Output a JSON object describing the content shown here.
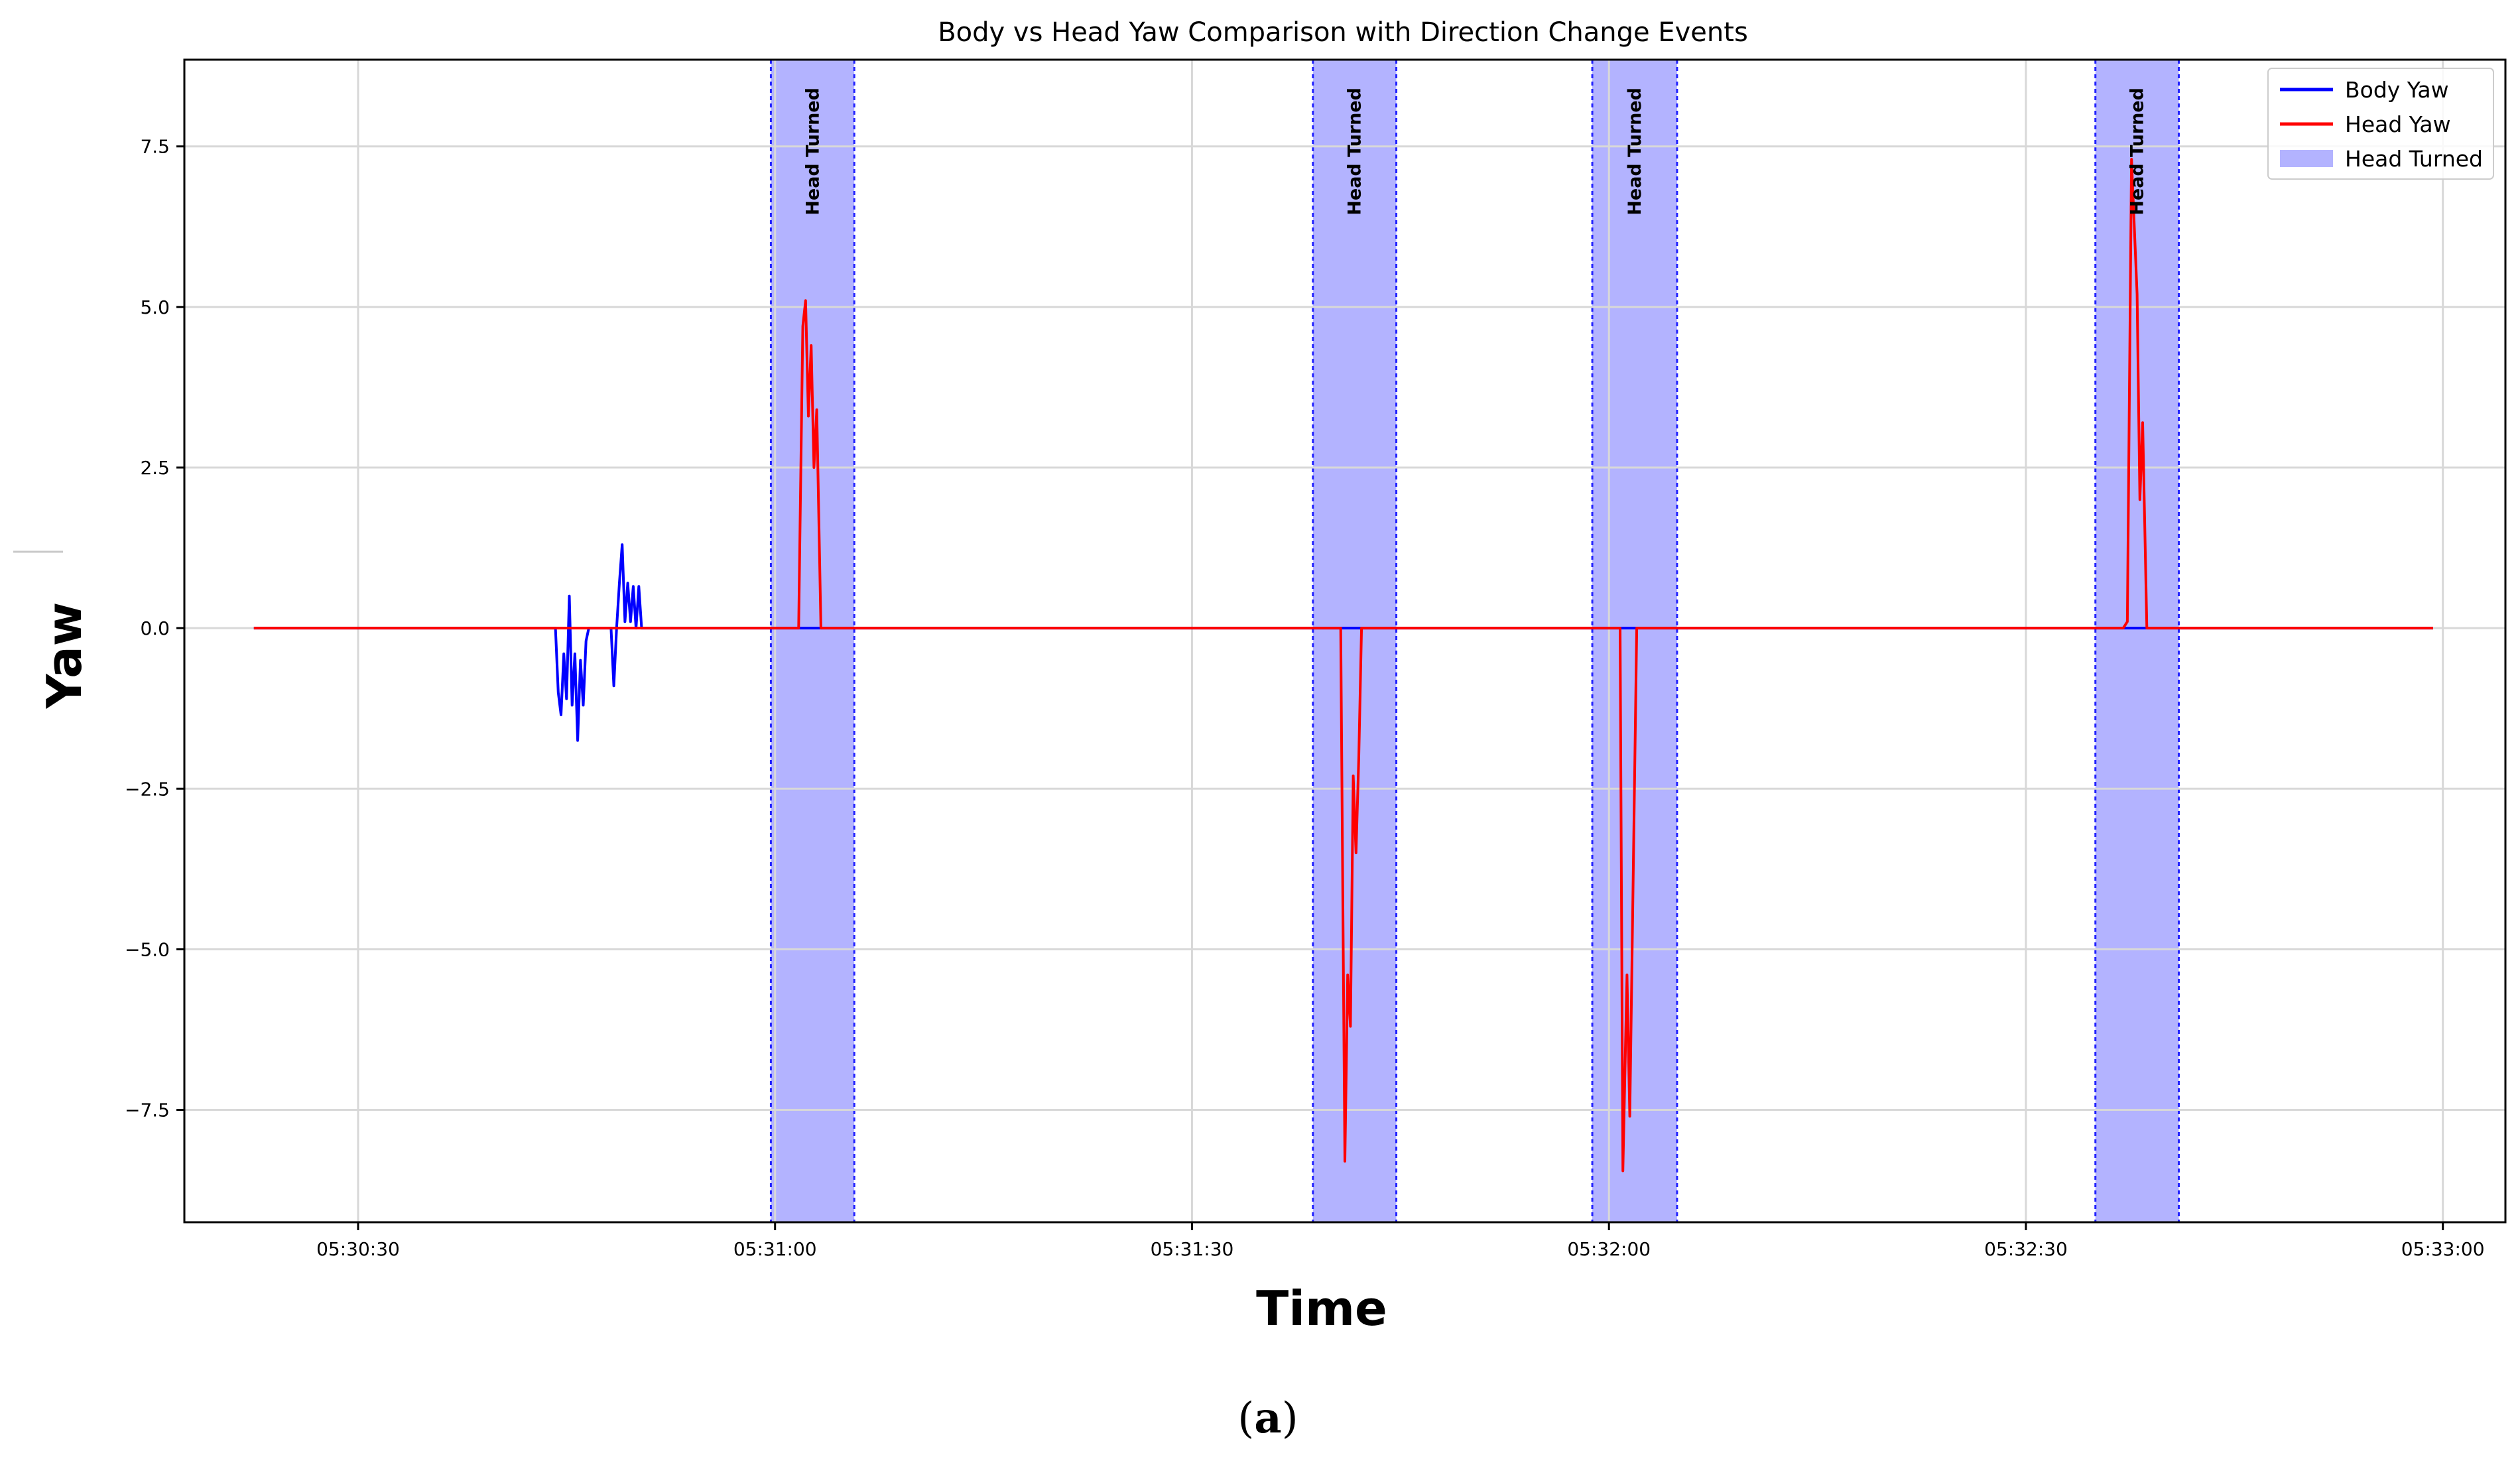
{
  "chart_data": {
    "type": "line",
    "title": "Body vs Head Yaw Comparison with Direction Change Events",
    "xlabel": "Time",
    "ylabel": "Yaw",
    "x_unit": "time-of-day",
    "xlim": [
      "05:30:17.5",
      "05:33:04.5"
    ],
    "ylim": [
      -9.25,
      8.85
    ],
    "x_ticks": [
      "05:30:30",
      "05:31:00",
      "05:31:30",
      "05:32:00",
      "05:32:30",
      "05:33:00"
    ],
    "y_ticks": [
      -7.5,
      -5.0,
      -2.5,
      0.0,
      2.5,
      5.0,
      7.5
    ],
    "y_tick_labels": [
      "−7.5",
      "−5.0",
      "−2.5",
      "0.0",
      "2.5",
      "5.0",
      "7.5"
    ],
    "grid": true,
    "legend_position": "top-right",
    "series": [
      {
        "name": "Body Yaw",
        "color": "#0000ff",
        "points": [
          [
            "05:30:22.5",
            0
          ],
          [
            "05:30:44.2",
            0
          ],
          [
            "05:30:44.4",
            -1.0
          ],
          [
            "05:30:44.6",
            -1.35
          ],
          [
            "05:30:44.8",
            -0.4
          ],
          [
            "05:30:45.0",
            -1.1
          ],
          [
            "05:30:45.2",
            0.5
          ],
          [
            "05:30:45.4",
            -1.2
          ],
          [
            "05:30:45.6",
            -0.4
          ],
          [
            "05:30:45.8",
            -1.75
          ],
          [
            "05:30:46.0",
            -0.5
          ],
          [
            "05:30:46.2",
            -1.2
          ],
          [
            "05:30:46.4",
            -0.2
          ],
          [
            "05:30:46.6",
            0
          ],
          [
            "05:30:48.2",
            0
          ],
          [
            "05:30:48.4",
            -0.9
          ],
          [
            "05:30:48.6",
            0
          ],
          [
            "05:30:48.8",
            0.7
          ],
          [
            "05:30:49.0",
            1.3
          ],
          [
            "05:30:49.2",
            0.1
          ],
          [
            "05:30:49.4",
            0.7
          ],
          [
            "05:30:49.6",
            0.1
          ],
          [
            "05:30:49.8",
            0.65
          ],
          [
            "05:30:50.0",
            0.0
          ],
          [
            "05:30:50.2",
            0.65
          ],
          [
            "05:30:50.4",
            0
          ],
          [
            "05:32:59.3",
            0
          ]
        ]
      },
      {
        "name": "Head Yaw",
        "color": "#ff0000",
        "points": [
          [
            "05:30:22.5",
            0
          ],
          [
            "05:31:01.7",
            0
          ],
          [
            "05:31:02.0",
            4.7
          ],
          [
            "05:31:02.2",
            5.1
          ],
          [
            "05:31:02.4",
            3.3
          ],
          [
            "05:31:02.6",
            4.4
          ],
          [
            "05:31:02.8",
            2.5
          ],
          [
            "05:31:03.0",
            3.4
          ],
          [
            "05:31:03.3",
            0
          ],
          [
            "05:31:40.7",
            0
          ],
          [
            "05:31:41.0",
            -8.3
          ],
          [
            "05:31:41.2",
            -5.4
          ],
          [
            "05:31:41.4",
            -6.2
          ],
          [
            "05:31:41.6",
            -2.3
          ],
          [
            "05:31:41.8",
            -3.5
          ],
          [
            "05:31:42.0",
            -2.0
          ],
          [
            "05:31:42.2",
            0
          ],
          [
            "05:32:00.8",
            0
          ],
          [
            "05:32:01.0",
            -8.45
          ],
          [
            "05:32:01.3",
            -5.4
          ],
          [
            "05:32:01.5",
            -7.6
          ],
          [
            "05:32:02.0",
            0
          ],
          [
            "05:32:37.0",
            0
          ],
          [
            "05:32:37.3",
            0.1
          ],
          [
            "05:32:37.6",
            7.3
          ],
          [
            "05:32:38.0",
            5.2
          ],
          [
            "05:32:38.2",
            2.0
          ],
          [
            "05:32:38.4",
            3.2
          ],
          [
            "05:32:38.7",
            0
          ],
          [
            "05:32:59.3",
            0
          ]
        ]
      }
    ],
    "shaded_regions": {
      "name": "Head Turned",
      "label": "Head Turned",
      "color": "#b3b3ff",
      "edge_color": "#2222ff",
      "intervals": [
        [
          "05:30:59.7",
          "05:31:05.7"
        ],
        [
          "05:31:38.7",
          "05:31:44.7"
        ],
        [
          "05:31:58.8",
          "05:32:04.9"
        ],
        [
          "05:32:35.0",
          "05:32:41.0"
        ]
      ]
    }
  },
  "caption": {
    "open": "(",
    "letter": "a",
    "close": ")"
  }
}
